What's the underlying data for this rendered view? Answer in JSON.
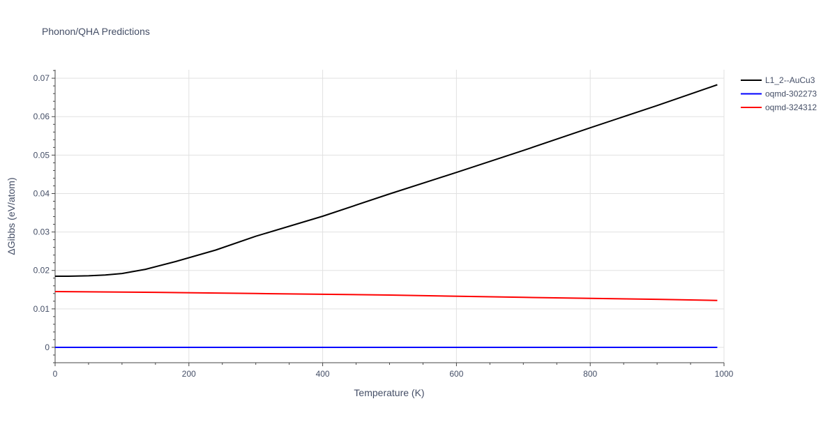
{
  "chart_data": {
    "type": "line",
    "title": "Phonon/QHA Predictions",
    "xlabel": "Temperature (K)",
    "ylabel": "ΔGibbs (eV/atom)",
    "xlim": [
      0,
      1000
    ],
    "ylim": [
      -0.004,
      0.0722
    ],
    "x_ticks": [
      0,
      200,
      400,
      600,
      800,
      1000
    ],
    "x_tick_labels": [
      "0",
      "200",
      "400",
      "600",
      "800",
      "1000"
    ],
    "y_ticks": [
      0,
      0.01,
      0.02,
      0.03,
      0.04,
      0.05,
      0.06,
      0.07
    ],
    "y_tick_labels": [
      "0",
      "0.01",
      "0.02",
      "0.03",
      "0.04",
      "0.05",
      "0.06",
      "0.07"
    ],
    "grid": true,
    "legend_position": "top-right",
    "series": [
      {
        "name": "L1_2--AuCu3",
        "color": "#000000",
        "x": [
          0,
          20,
          50,
          75,
          100,
          135,
          180,
          240,
          300,
          400,
          500,
          600,
          700,
          800,
          900,
          990
        ],
        "y": [
          0.0185,
          0.0185,
          0.0186,
          0.0188,
          0.0192,
          0.0203,
          0.0223,
          0.0253,
          0.0289,
          0.0341,
          0.0399,
          0.0455,
          0.0512,
          0.0571,
          0.0629,
          0.0683
        ]
      },
      {
        "name": "oqmd-302273",
        "color": "#0000ff",
        "x": [
          0,
          200,
          400,
          600,
          800,
          990
        ],
        "y": [
          0,
          0,
          0,
          0,
          0,
          0
        ]
      },
      {
        "name": "oqmd-324312",
        "color": "#ff0000",
        "x": [
          0,
          150,
          300,
          500,
          700,
          900,
          990
        ],
        "y": [
          0.0145,
          0.0143,
          0.014,
          0.0136,
          0.013,
          0.0125,
          0.0122
        ]
      }
    ]
  }
}
